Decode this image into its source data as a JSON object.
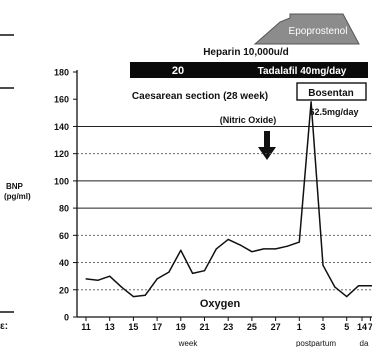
{
  "chart_data": {
    "type": "line",
    "ylabel_line1": "BNP",
    "ylabel_line2": "(pg/ml)",
    "ylim": [
      0,
      180
    ],
    "yticks": [
      "0",
      "20",
      "40",
      "60",
      "80",
      "100",
      "120",
      "140",
      "160",
      "180"
    ],
    "solid_gridlines": [
      80,
      100,
      140
    ],
    "dashed_gridlines": [
      20,
      40,
      60,
      120
    ],
    "xtick_labels": [
      "11",
      "13",
      "15",
      "17",
      "19",
      "21",
      "23",
      "25",
      "27",
      "1",
      "3",
      "5",
      "7",
      "14"
    ],
    "xlabel_left": "week",
    "xlabel_right": "postpartum day",
    "x_labels_partial": [
      "week",
      "postpartum",
      "da"
    ],
    "series": [
      {
        "x": [
          11,
          12,
          13,
          14,
          15,
          16,
          17,
          18,
          19,
          20,
          21,
          22,
          23,
          24,
          25,
          26,
          27,
          28,
          29,
          30,
          31,
          32,
          33,
          34,
          35,
          36
        ],
        "values": [
          28,
          27,
          30,
          22,
          15,
          16,
          28,
          33,
          49,
          32,
          34,
          50,
          57,
          53,
          48,
          50,
          50,
          52,
          55,
          158,
          38,
          22,
          15,
          23,
          23,
          23
        ]
      }
    ],
    "annotations": {
      "epoprostenol": "Epoprostenol",
      "heparin": "Heparin 10,000u/d",
      "heparin_bar_value": "20",
      "tadalafil": "Tadalafil 40mg/day",
      "caesarean": "Caesarean section (28 week)",
      "nitric_oxide": "(Nitric Oxide)",
      "bosentan": "Bosentan",
      "bosentan_dose": "62.5mg/day",
      "oxygen": "Oxygen",
      "left_edge_fragment": "ε:"
    }
  }
}
